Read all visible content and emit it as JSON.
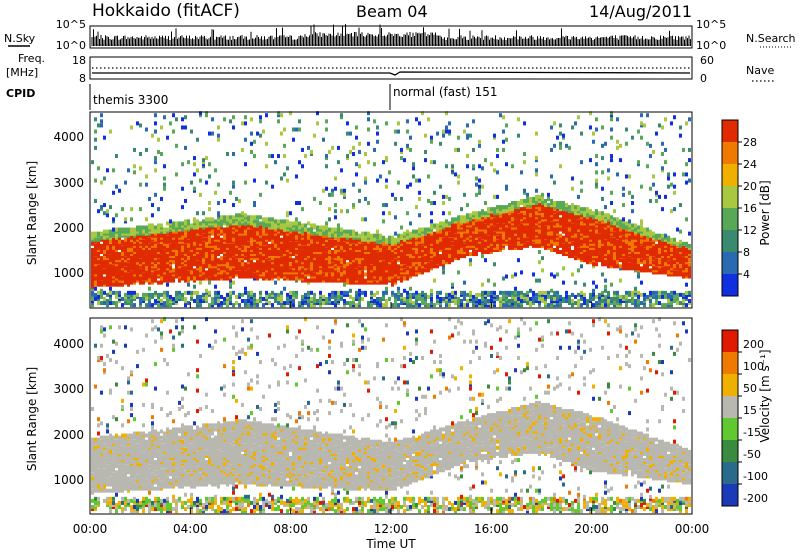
{
  "header": {
    "station": "Hokkaido (fitACF)",
    "beam": "Beam 04",
    "date": "14/Aug/2011"
  },
  "left_labels": {
    "nsky": "N.Sky",
    "freq": "Freq.",
    "mhz": "[MHz]",
    "cpid": "CPID"
  },
  "right_labels": {
    "nsearch": "N.Search",
    "nave": "Nave"
  },
  "chart_data": [
    {
      "type": "line",
      "panel": "noise",
      "left_axis": {
        "ticks": [
          "10^5",
          "10^0"
        ]
      },
      "right_axis": {
        "ticks": [
          "10^5",
          "10^0"
        ]
      },
      "series": [
        {
          "name": "N.Sky"
        },
        {
          "name": "N.Search"
        }
      ]
    },
    {
      "type": "line",
      "panel": "frequency",
      "left_axis": {
        "ticks": [
          "18",
          "8"
        ]
      },
      "right_axis": {
        "ticks": [
          "60",
          "0"
        ]
      },
      "series": [
        {
          "name": "Freq.",
          "values_mhz": [
            10.0
          ]
        },
        {
          "name": "Nave",
          "values": [
            40
          ]
        }
      ]
    },
    {
      "type": "table",
      "panel": "cpid",
      "segments": [
        {
          "label": "themis 3300",
          "start": "00:00",
          "end": "12:00"
        },
        {
          "label": "normal (fast) 151",
          "start": "12:00",
          "end": "24:00"
        }
      ]
    },
    {
      "type": "heatmap",
      "panel": "power",
      "ylabel": "Slant Range [km]",
      "ylim": [
        180,
        4500
      ],
      "yticks": [
        "1000",
        "2000",
        "3000",
        "4000"
      ],
      "colorbar": {
        "title": "Power [dB]",
        "ticks": [
          "4",
          "8",
          "12",
          "16",
          "20",
          "24",
          "28"
        ],
        "colors": [
          "#1030e0",
          "#2a6ab0",
          "#3a8a70",
          "#58a858",
          "#a8c840",
          "#f0b000",
          "#f07a00",
          "#e02a00"
        ]
      },
      "bands": [
        {
          "x": [
            0,
            6,
            12,
            15,
            17.8,
            20,
            24
          ],
          "low": [
            600,
            800,
            650,
            1300,
            1500,
            1100,
            800
          ],
          "high": [
            1800,
            2200,
            1700,
            2200,
            2600,
            2300,
            1500
          ]
        }
      ]
    },
    {
      "type": "heatmap",
      "panel": "velocity",
      "ylabel": "Slant Range [km]",
      "xlabel": "Time UT",
      "ylim": [
        180,
        4500
      ],
      "yticks": [
        "1000",
        "2000",
        "3000",
        "4000"
      ],
      "xticks": [
        "00:00",
        "04:00",
        "08:00",
        "12:00",
        "16:00",
        "20:00",
        "00:00"
      ],
      "xlim_hours": [
        0,
        24
      ],
      "colorbar": {
        "title": "Velocity [m s⁻¹]",
        "ticks": [
          "200",
          "100",
          "50",
          "15",
          "-15",
          "-50",
          "-100",
          "-200"
        ],
        "colors": [
          "#1a3ab8",
          "#2a6a8a",
          "#3a8a40",
          "#60c830",
          "#b8b8b0",
          "#f0b000",
          "#f07a00",
          "#e01a00"
        ]
      }
    }
  ]
}
